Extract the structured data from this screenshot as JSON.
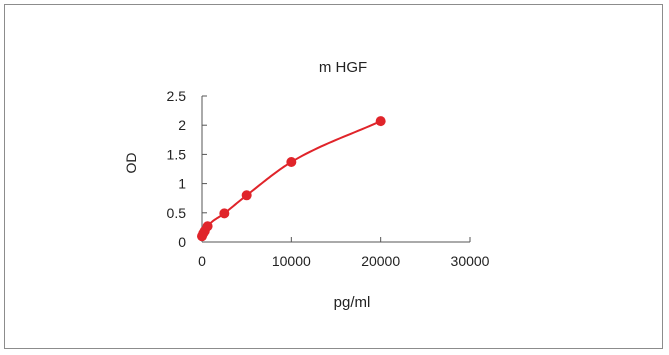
{
  "chart_data": {
    "type": "scatter",
    "title": "m  HGF",
    "xlabel": "pg/ml",
    "ylabel": "OD",
    "xlim": [
      0,
      30000
    ],
    "ylim": [
      0,
      2.5
    ],
    "x_ticks": [
      "0",
      "10000",
      "20000",
      "30000"
    ],
    "y_ticks": [
      "0",
      "0.5",
      "1",
      "1.5",
      "2",
      "2.5"
    ],
    "grid": false,
    "legend": "none",
    "series": [
      {
        "x": [
          0,
          156,
          312,
          625,
          2500,
          5000,
          10000,
          20000
        ],
        "y": [
          0.1,
          0.15,
          0.19,
          0.27,
          0.49,
          0.8,
          1.37,
          2.07
        ],
        "color": "#e0242a",
        "line": "smooth fit"
      }
    ]
  }
}
